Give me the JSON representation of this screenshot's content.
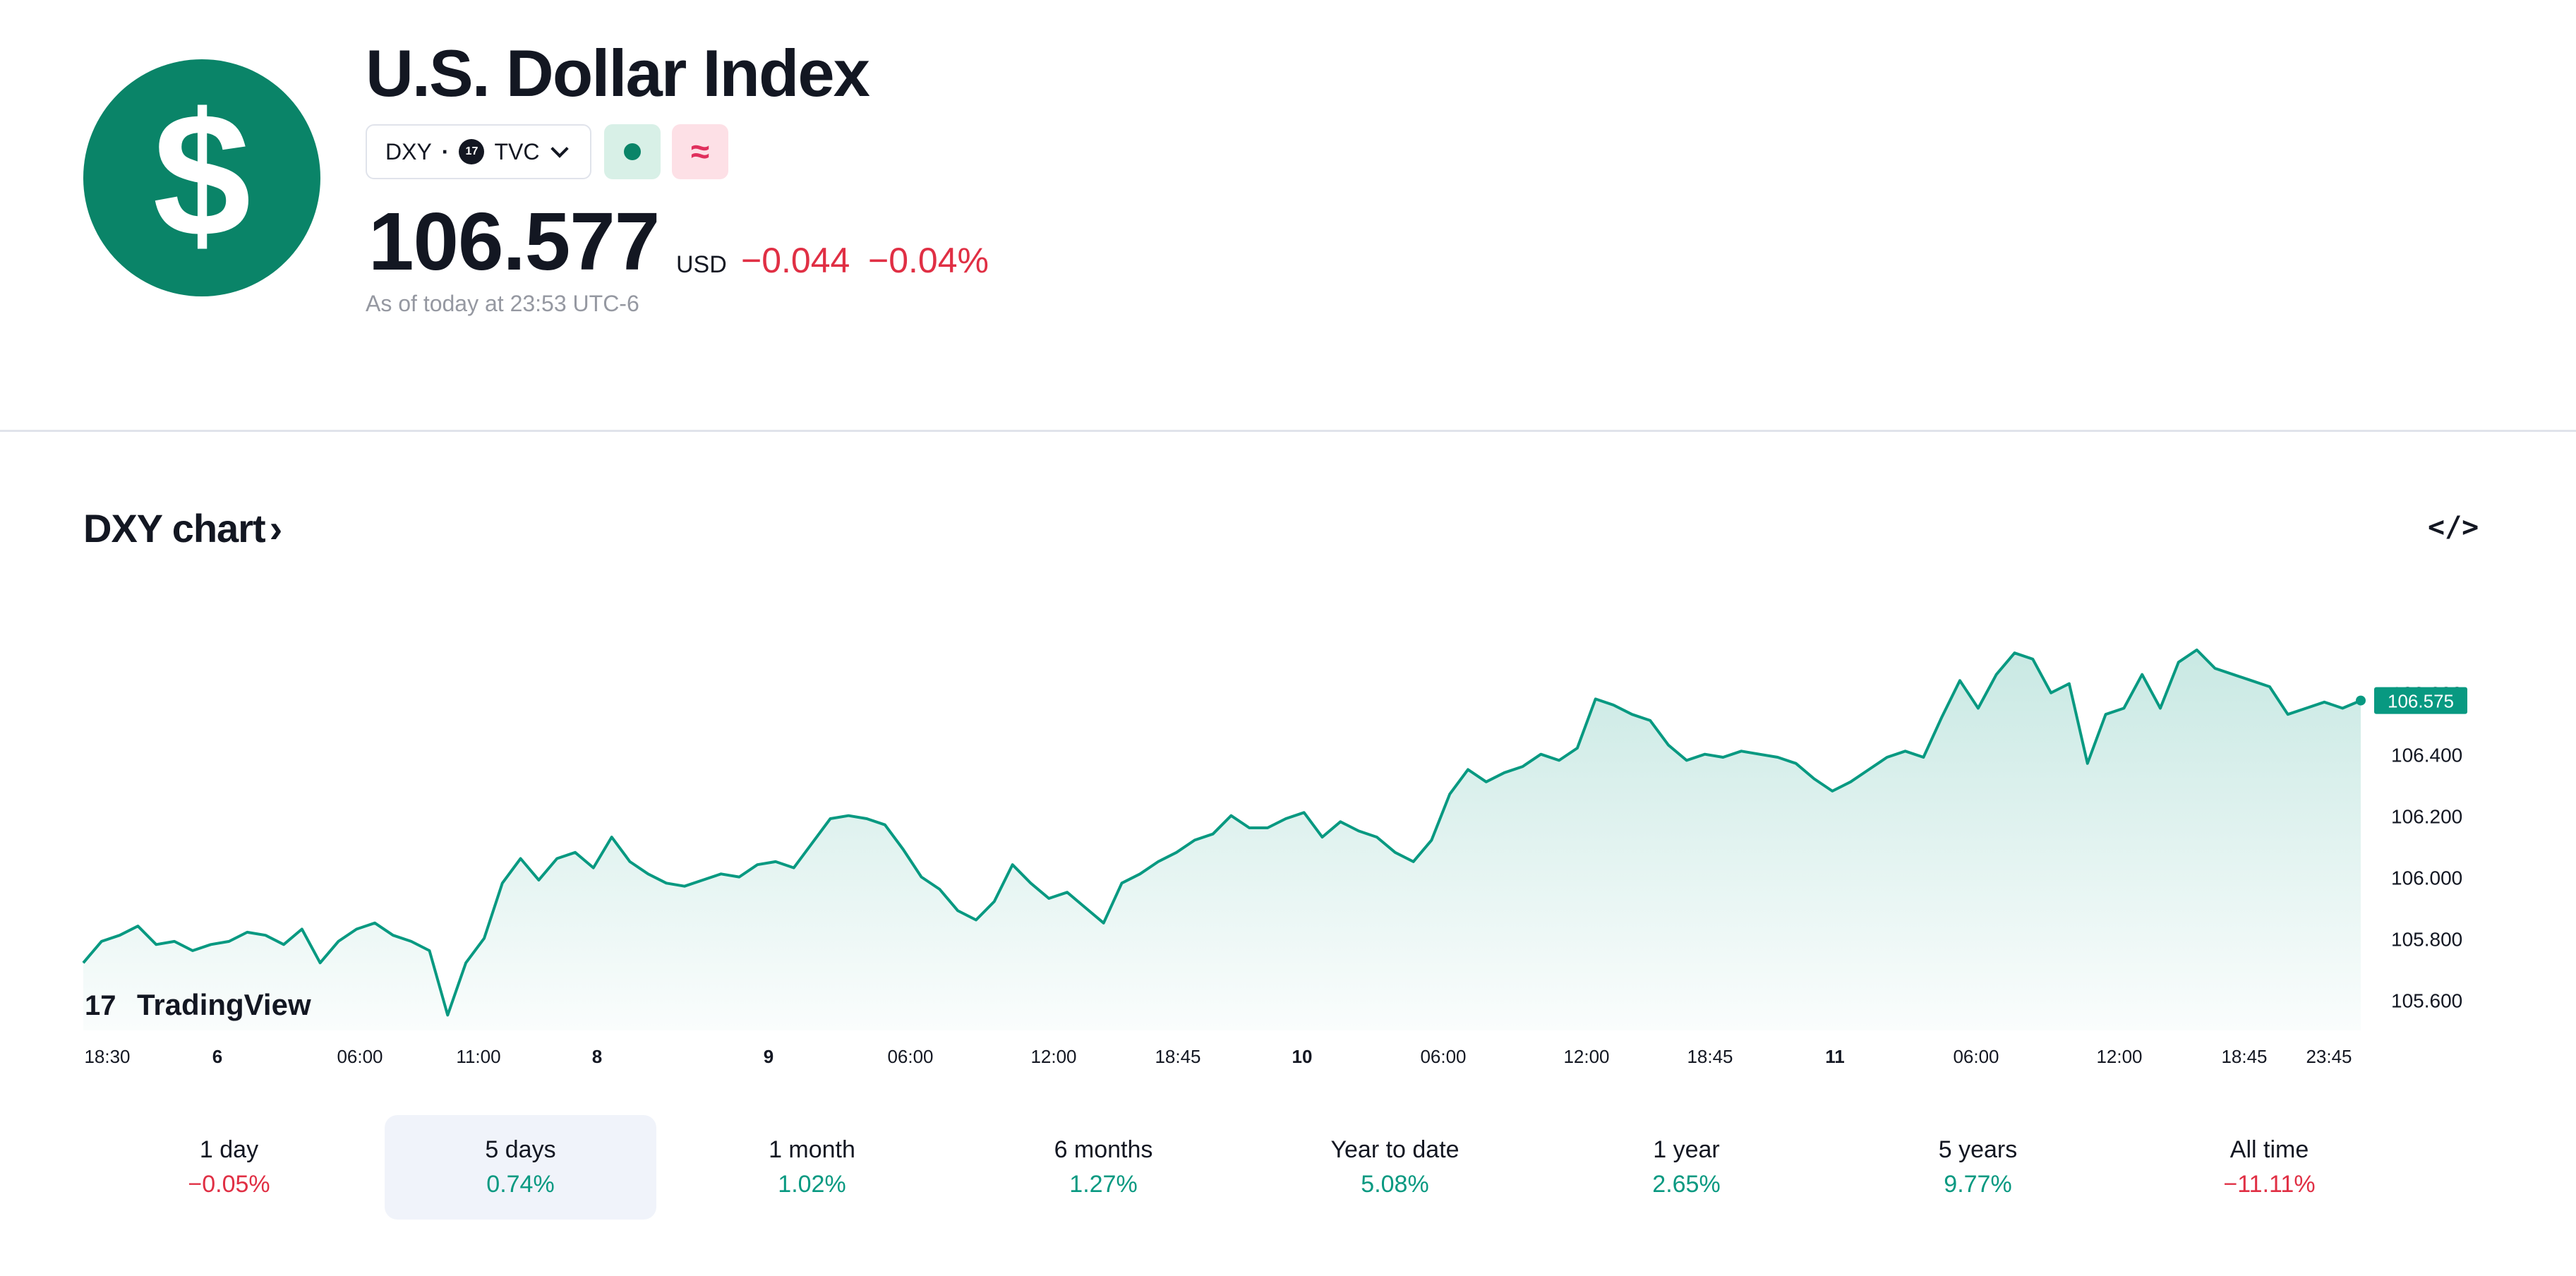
{
  "header": {
    "logo_glyph": "$",
    "title": "U.S. Dollar Index",
    "symbol": "DXY",
    "separator": "·",
    "exchange_badge": "17",
    "exchange": "TVC",
    "approx_glyph": "≈",
    "price": "106.577",
    "currency": "USD",
    "change_abs": "−0.044",
    "change_pct": "−0.04%",
    "as_of": "As of today at 23:53 UTC-6",
    "market_status_color": "#0a8468"
  },
  "chart_section": {
    "title": "DXY chart",
    "title_arrow": "›",
    "embed_label": "</>"
  },
  "chart_data": {
    "type": "area",
    "watermark": "TradingView",
    "watermark_logo": "17",
    "line_color": "#089981",
    "grid": false,
    "y_ticks": [
      "105.600",
      "105.800",
      "106.000",
      "106.200",
      "106.400",
      "106.600"
    ],
    "ylim": [
      105.5,
      106.88
    ],
    "x_ticks": [
      {
        "label": "18:30",
        "bold": false
      },
      {
        "label": "6",
        "bold": true
      },
      {
        "label": "06:00",
        "bold": false
      },
      {
        "label": "11:00",
        "bold": false
      },
      {
        "label": "8",
        "bold": true
      },
      {
        "label": "9",
        "bold": true
      },
      {
        "label": "06:00",
        "bold": false
      },
      {
        "label": "12:00",
        "bold": false
      },
      {
        "label": "18:45",
        "bold": false
      },
      {
        "label": "10",
        "bold": true
      },
      {
        "label": "06:00",
        "bold": false
      },
      {
        "label": "12:00",
        "bold": false
      },
      {
        "label": "18:45",
        "bold": false
      },
      {
        "label": "11",
        "bold": true
      },
      {
        "label": "06:00",
        "bold": false
      },
      {
        "label": "12:00",
        "bold": false
      },
      {
        "label": "18:45",
        "bold": false
      },
      {
        "label": "23:45",
        "bold": false
      }
    ],
    "last_value_label": "106.575",
    "values": [
      105.72,
      105.79,
      105.81,
      105.84,
      105.78,
      105.79,
      105.76,
      105.78,
      105.79,
      105.82,
      105.81,
      105.78,
      105.83,
      105.72,
      105.79,
      105.83,
      105.85,
      105.81,
      105.79,
      105.76,
      105.55,
      105.72,
      105.8,
      105.98,
      106.06,
      105.99,
      106.06,
      106.08,
      106.03,
      106.13,
      106.05,
      106.01,
      105.98,
      105.97,
      105.99,
      106.01,
      106.0,
      106.04,
      106.05,
      106.03,
      106.11,
      106.19,
      106.2,
      106.19,
      106.17,
      106.09,
      106.0,
      105.96,
      105.89,
      105.86,
      105.92,
      106.04,
      105.98,
      105.93,
      105.95,
      105.9,
      105.85,
      105.98,
      106.01,
      106.05,
      106.08,
      106.12,
      106.14,
      106.2,
      106.16,
      106.16,
      106.19,
      106.21,
      106.13,
      106.18,
      106.15,
      106.13,
      106.08,
      106.05,
      106.12,
      106.27,
      106.35,
      106.31,
      106.34,
      106.36,
      106.4,
      106.38,
      106.42,
      106.58,
      106.56,
      106.53,
      106.51,
      106.43,
      106.38,
      106.4,
      106.39,
      106.41,
      106.4,
      106.39,
      106.37,
      106.32,
      106.28,
      106.31,
      106.35,
      106.39,
      106.41,
      106.39,
      106.52,
      106.64,
      106.55,
      106.66,
      106.73,
      106.71,
      106.6,
      106.63,
      106.37,
      106.53,
      106.55,
      106.66,
      106.55,
      106.7,
      106.74,
      106.68,
      106.66,
      106.64,
      106.62,
      106.53,
      106.55,
      106.57,
      106.55,
      106.575
    ]
  },
  "periods": [
    {
      "label": "1 day",
      "value": "−0.05%",
      "sign": "neg",
      "selected": false
    },
    {
      "label": "5 days",
      "value": "0.74%",
      "sign": "pos",
      "selected": true
    },
    {
      "label": "1 month",
      "value": "1.02%",
      "sign": "pos",
      "selected": false
    },
    {
      "label": "6 months",
      "value": "1.27%",
      "sign": "pos",
      "selected": false
    },
    {
      "label": "Year to date",
      "value": "5.08%",
      "sign": "pos",
      "selected": false
    },
    {
      "label": "1 year",
      "value": "2.65%",
      "sign": "pos",
      "selected": false
    },
    {
      "label": "5 years",
      "value": "9.77%",
      "sign": "pos",
      "selected": false
    },
    {
      "label": "All time",
      "value": "−11.11%",
      "sign": "neg",
      "selected": false
    }
  ]
}
